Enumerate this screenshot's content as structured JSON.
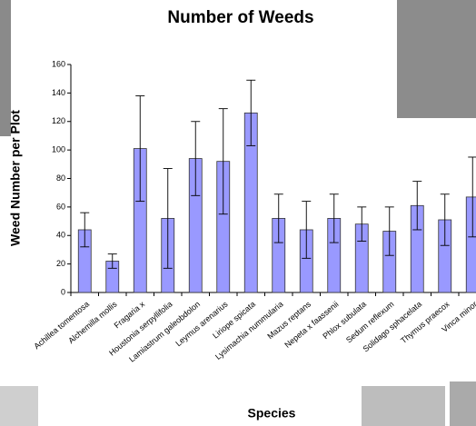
{
  "chart_data": {
    "type": "bar",
    "title": "Number of Weeds",
    "x_label": "Species",
    "y_label": "Weed Number per Plot",
    "categories": [
      "Achillea tomentosa",
      "Alchemilla mollis",
      "Fragaria x",
      "Houstonia serpyllifolia",
      "Lamiastrum galeobdolon",
      "Leymus arenarius",
      "Liriope spicata",
      "Lysimachia nummularia",
      "Mazus reptans",
      "Nepeta x faassenii",
      "Phlox subulata",
      "Sedum reflexum",
      "Solidago sphacelata",
      "Thymus praecox",
      "Vinca minor"
    ],
    "values": [
      44,
      22,
      101,
      52,
      94,
      92,
      126,
      52,
      44,
      52,
      48,
      43,
      61,
      51,
      67
    ],
    "errors": [
      12,
      5,
      37,
      35,
      26,
      37,
      23,
      17,
      20,
      17,
      12,
      17,
      17,
      18,
      28
    ],
    "color": "#9999ff",
    "ylim": [
      0,
      160
    ],
    "yticks": [
      0,
      20,
      40,
      60,
      80,
      100,
      120,
      140,
      160
    ],
    "grid": false
  }
}
